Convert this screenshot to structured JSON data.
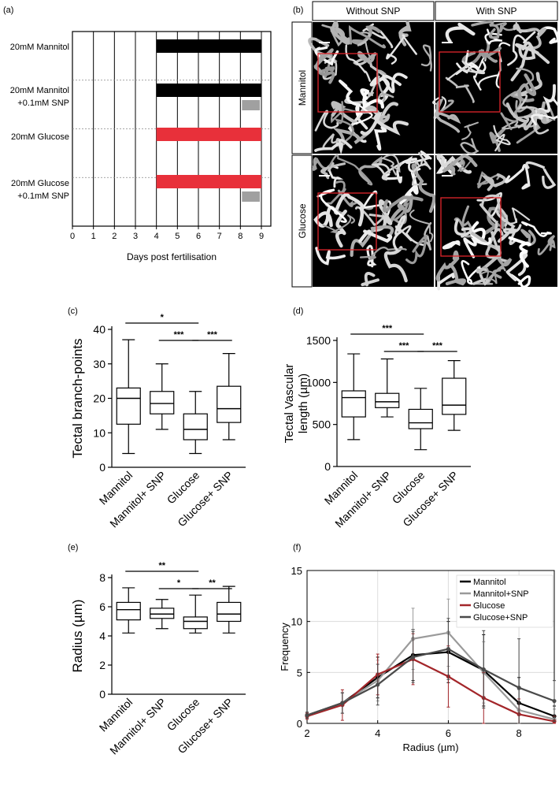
{
  "panel_labels": {
    "a": "(a)",
    "b": "(b)",
    "c": "(c)",
    "d": "(d)",
    "e": "(e)",
    "f": "(f)"
  },
  "panel_a": {
    "rows": [
      {
        "label_lines": [
          "20mM Mannitol"
        ],
        "treatment_color": "#000000",
        "snp_bar": false
      },
      {
        "label_lines": [
          "20mM Mannitol",
          "+0.1mM SNP"
        ],
        "treatment_color": "#000000",
        "snp_bar": true
      },
      {
        "label_lines": [
          "20mM Glucose"
        ],
        "treatment_color": "#e8303a",
        "snp_bar": false
      },
      {
        "label_lines": [
          "20mM Glucose",
          "+0.1mM SNP"
        ],
        "treatment_color": "#e8303a",
        "snp_bar": true
      }
    ],
    "treatment_span": [
      4,
      9
    ],
    "snp_span": [
      8,
      9
    ],
    "snp_color": "#a0a0a0",
    "x_ticks": [
      "0",
      "1",
      "2",
      "3",
      "4",
      "5",
      "6",
      "7",
      "8",
      "9"
    ],
    "xlabel": "Days post fertilisation"
  },
  "panel_b": {
    "col_headers": [
      "Without SNP",
      "With SNP"
    ],
    "row_headers": [
      "Mannitol",
      "Glucose"
    ],
    "roi_color": "#e0262b"
  },
  "chart_data": [
    {
      "id": "c",
      "type": "box",
      "ylabel": "Tectal branch-points",
      "categories": [
        "Mannitol",
        "Mannitol+ SNP",
        "Glucose",
        "Glucose+ SNP"
      ],
      "ylim": [
        0,
        40
      ],
      "yticks": [
        "0",
        "10",
        "20",
        "30",
        "40"
      ],
      "boxes": [
        {
          "min": 4,
          "q1": 12.5,
          "median": 20,
          "q3": 23,
          "max": 37
        },
        {
          "min": 11,
          "q1": 15.5,
          "median": 18.5,
          "q3": 22,
          "max": 30
        },
        {
          "min": 4,
          "q1": 8,
          "median": 11,
          "q3": 15.5,
          "max": 22
        },
        {
          "min": 8,
          "q1": 13,
          "median": 17,
          "q3": 23.5,
          "max": 33
        }
      ],
      "significance": [
        {
          "from": 0,
          "to": 2,
          "label": "*"
        },
        {
          "from": 1,
          "to": 2,
          "label": "***"
        },
        {
          "from": 2,
          "to": 3,
          "label": "***"
        }
      ]
    },
    {
      "id": "d",
      "type": "box",
      "ylabel_lines": [
        "Tectal Vascular",
        "length (µm)"
      ],
      "categories": [
        "Mannitol",
        "Mannitol+ SNP",
        "Glucose",
        "Glucose+ SNP"
      ],
      "ylim": [
        0,
        1500
      ],
      "yticks": [
        "0",
        "500",
        "1000",
        "1500"
      ],
      "boxes": [
        {
          "min": 320,
          "q1": 590,
          "median": 820,
          "q3": 900,
          "max": 1340
        },
        {
          "min": 590,
          "q1": 700,
          "median": 770,
          "q3": 870,
          "max": 1280
        },
        {
          "min": 200,
          "q1": 450,
          "median": 520,
          "q3": 680,
          "max": 930
        },
        {
          "min": 430,
          "q1": 620,
          "median": 730,
          "q3": 1050,
          "max": 1260
        }
      ],
      "significance": [
        {
          "from": 0,
          "to": 2,
          "label": "***"
        },
        {
          "from": 1,
          "to": 2,
          "label": "***"
        },
        {
          "from": 2,
          "to": 3,
          "label": "***"
        }
      ]
    },
    {
      "id": "e",
      "type": "box",
      "ylabel": "Radius (µm)",
      "categories": [
        "Mannitol",
        "Mannitol+ SNP",
        "Glucose",
        "Glucose+ SNP"
      ],
      "ylim": [
        0,
        8
      ],
      "yticks": [
        "0",
        "2",
        "4",
        "6",
        "8"
      ],
      "boxes": [
        {
          "min": 4.2,
          "q1": 5.1,
          "median": 5.8,
          "q3": 6.3,
          "max": 7.3
        },
        {
          "min": 4.5,
          "q1": 5.2,
          "median": 5.5,
          "q3": 5.9,
          "max": 6.5
        },
        {
          "min": 4.2,
          "q1": 4.5,
          "median": 5.0,
          "q3": 5.3,
          "max": 6.8
        },
        {
          "min": 4.2,
          "q1": 5.0,
          "median": 5.5,
          "q3": 6.3,
          "max": 7.4
        }
      ],
      "significance": [
        {
          "from": 0,
          "to": 2,
          "label": "**"
        },
        {
          "from": 1,
          "to": 2,
          "label": "*"
        },
        {
          "from": 2,
          "to": 3,
          "label": "**"
        }
      ]
    },
    {
      "id": "f",
      "type": "line",
      "xlabel": "Radius (µm)",
      "ylabel": "Frequency",
      "xlim": [
        2,
        9
      ],
      "ylim": [
        0,
        15
      ],
      "xticks": [
        "2",
        "4",
        "6",
        "8"
      ],
      "yticks": [
        "0",
        "5",
        "10",
        "15"
      ],
      "grid": true,
      "legend": "top-right",
      "x": [
        2,
        3,
        4,
        5,
        6,
        7,
        8,
        9
      ],
      "series": [
        {
          "name": "Mannitol",
          "color": "#000000",
          "values": [
            0.8,
            2.0,
            4.5,
            6.7,
            7.0,
            5.2,
            2.0,
            0.7
          ],
          "err": [
            0.3,
            1.0,
            2.0,
            2.5,
            3.0,
            3.5,
            2.5,
            1.0
          ]
        },
        {
          "name": "Mannitol+SNP",
          "color": "#9a9a9a",
          "values": [
            0.8,
            2.0,
            4.2,
            8.3,
            8.9,
            5.0,
            1.3,
            0.4
          ],
          "err": [
            0.3,
            1.0,
            2.0,
            3.0,
            3.3,
            3.0,
            2.0,
            1.0
          ]
        },
        {
          "name": "Glucose",
          "color": "#a3262a",
          "values": [
            0.7,
            1.8,
            4.8,
            6.3,
            4.6,
            2.5,
            0.9,
            0.2
          ],
          "err": [
            0.3,
            1.5,
            2.0,
            2.5,
            3.0,
            2.5,
            1.5,
            0.5
          ]
        },
        {
          "name": "Glucose+SNP",
          "color": "#4a4a4a",
          "values": [
            0.8,
            2.0,
            3.8,
            6.5,
            7.3,
            5.3,
            3.5,
            2.2
          ],
          "err": [
            0.3,
            1.0,
            2.0,
            2.5,
            3.0,
            3.8,
            4.8,
            2.0
          ]
        }
      ]
    }
  ]
}
